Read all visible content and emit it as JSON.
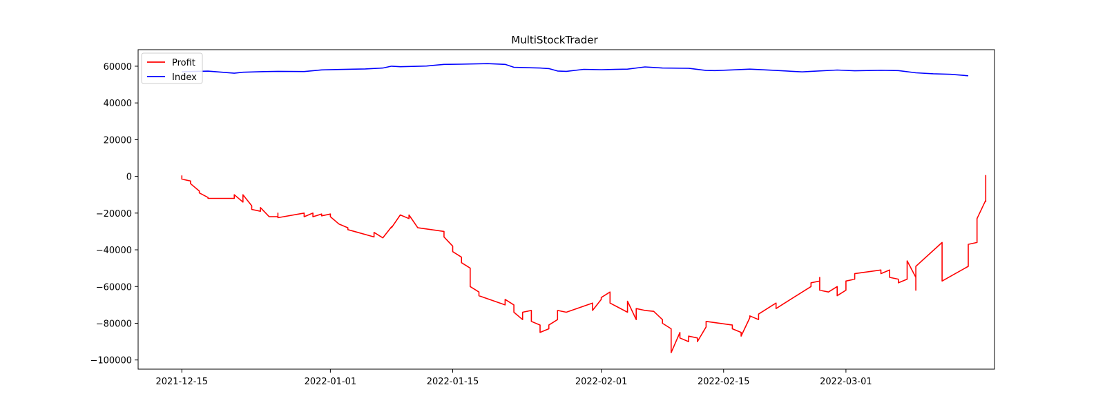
{
  "chart_data": {
    "type": "line",
    "title": "MultiStockTrader",
    "xlabel": "",
    "ylabel": "",
    "x_axis": {
      "kind": "date",
      "range": [
        "2021-12-10",
        "2022-03-18"
      ],
      "ticks": [
        {
          "date": "2021-12-15",
          "label": "2021-12-15"
        },
        {
          "date": "2022-01-01",
          "label": "2022-01-01"
        },
        {
          "date": "2022-01-15",
          "label": "2022-01-15"
        },
        {
          "date": "2022-02-01",
          "label": "2022-02-01"
        },
        {
          "date": "2022-02-15",
          "label": "2022-02-15"
        },
        {
          "date": "2022-03-01",
          "label": "2022-03-01"
        }
      ]
    },
    "y_axis": {
      "range": [
        -105000,
        69000
      ],
      "ticks": [
        {
          "value": 60000,
          "label": "60000"
        },
        {
          "value": 40000,
          "label": "40000"
        },
        {
          "value": 20000,
          "label": "20000"
        },
        {
          "value": 0,
          "label": "0"
        },
        {
          "value": -20000,
          "label": "−20000"
        },
        {
          "value": -40000,
          "label": "−40000"
        },
        {
          "value": -60000,
          "label": "−60000"
        },
        {
          "value": -80000,
          "label": "−80000"
        },
        {
          "value": -100000,
          "label": "−100000"
        }
      ]
    },
    "grid": false,
    "legend": {
      "position": "top-left",
      "entries": [
        {
          "label": "Profit",
          "color": "#ff0000"
        },
        {
          "label": "Index",
          "color": "#0000ff"
        }
      ]
    },
    "series": [
      {
        "name": "Profit",
        "color": "#ff0000",
        "points": [
          [
            "2021-12-15",
            500
          ],
          [
            "2021-12-15",
            -1500
          ],
          [
            "2021-12-16",
            -2500
          ],
          [
            "2021-12-16",
            -4000
          ],
          [
            "2021-12-17",
            -8000
          ],
          [
            "2021-12-17",
            -9000
          ],
          [
            "2021-12-18",
            -11500
          ],
          [
            "2021-12-18",
            -12000
          ],
          [
            "2021-12-21",
            -12000
          ],
          [
            "2021-12-21",
            -10000
          ],
          [
            "2021-12-22",
            -14000
          ],
          [
            "2021-12-22",
            -10000
          ],
          [
            "2021-12-23",
            -16000
          ],
          [
            "2021-12-23",
            -18000
          ],
          [
            "2021-12-24",
            -19000
          ],
          [
            "2021-12-24",
            -17000
          ],
          [
            "2021-12-25",
            -22000
          ],
          [
            "2021-12-26",
            -22000
          ],
          [
            "2021-12-26",
            -20000
          ],
          [
            "2021-12-26",
            -22500
          ],
          [
            "2021-12-29",
            -20000
          ],
          [
            "2021-12-29",
            -22000
          ],
          [
            "2021-12-30",
            -20000
          ],
          [
            "2021-12-30",
            -22000
          ],
          [
            "2021-12-31",
            -20500
          ],
          [
            "2021-12-31",
            -21500
          ],
          [
            "2022-01-01",
            -20500
          ],
          [
            "2022-01-01",
            -22000
          ],
          [
            "2022-01-02",
            -26000
          ],
          [
            "2022-01-03",
            -28000
          ],
          [
            "2022-01-03",
            -29000
          ],
          [
            "2022-01-06",
            -33000
          ],
          [
            "2022-01-06",
            -30500
          ],
          [
            "2022-01-07",
            -33500
          ],
          [
            "2022-01-08",
            -27500
          ],
          [
            "2022-01-08",
            -28000
          ],
          [
            "2022-01-09",
            -21000
          ],
          [
            "2022-01-10",
            -23000
          ],
          [
            "2022-01-10",
            -21000
          ],
          [
            "2022-01-11",
            -28000
          ],
          [
            "2022-01-14",
            -30000
          ],
          [
            "2022-01-14",
            -33000
          ],
          [
            "2022-01-15",
            -38000
          ],
          [
            "2022-01-15",
            -41000
          ],
          [
            "2022-01-16",
            -44000
          ],
          [
            "2022-01-16",
            -47000
          ],
          [
            "2022-01-17",
            -50000
          ],
          [
            "2022-01-17",
            -60000
          ],
          [
            "2022-01-18",
            -63000
          ],
          [
            "2022-01-18",
            -65000
          ],
          [
            "2022-01-21",
            -70000
          ],
          [
            "2022-01-21",
            -67000
          ],
          [
            "2022-01-22",
            -70000
          ],
          [
            "2022-01-22",
            -74000
          ],
          [
            "2022-01-23",
            -78000
          ],
          [
            "2022-01-23",
            -74000
          ],
          [
            "2022-01-24",
            -73000
          ],
          [
            "2022-01-24",
            -79000
          ],
          [
            "2022-01-25",
            -81000
          ],
          [
            "2022-01-25",
            -83000
          ],
          [
            "2022-01-25",
            -85000
          ],
          [
            "2022-01-26",
            -83000
          ],
          [
            "2022-01-26",
            -81000
          ],
          [
            "2022-01-27",
            -78000
          ],
          [
            "2022-01-27",
            -73000
          ],
          [
            "2022-01-28",
            -74000
          ],
          [
            "2022-01-31",
            -69000
          ],
          [
            "2022-01-31",
            -73000
          ],
          [
            "2022-02-01",
            -67000
          ],
          [
            "2022-02-01",
            -66000
          ],
          [
            "2022-02-02",
            -63000
          ],
          [
            "2022-02-02",
            -69000
          ],
          [
            "2022-02-04",
            -74000
          ],
          [
            "2022-02-04",
            -68000
          ],
          [
            "2022-02-05",
            -78000
          ],
          [
            "2022-02-05",
            -72000
          ],
          [
            "2022-02-06",
            -73000
          ],
          [
            "2022-02-07",
            -73500
          ],
          [
            "2022-02-08",
            -78000
          ],
          [
            "2022-02-08",
            -80000
          ],
          [
            "2022-02-09",
            -83000
          ],
          [
            "2022-02-09",
            -86000
          ],
          [
            "2022-02-09",
            -96000
          ],
          [
            "2022-02-10",
            -85000
          ],
          [
            "2022-02-10",
            -88000
          ],
          [
            "2022-02-11",
            -90000
          ],
          [
            "2022-02-11",
            -87000
          ],
          [
            "2022-02-12",
            -88000
          ],
          [
            "2022-02-12",
            -90000
          ],
          [
            "2022-02-13",
            -82000
          ],
          [
            "2022-02-13",
            -79000
          ],
          [
            "2022-02-16",
            -81000
          ],
          [
            "2022-02-16",
            -83000
          ],
          [
            "2022-02-17",
            -85000
          ],
          [
            "2022-02-17",
            -87000
          ],
          [
            "2022-02-18",
            -77000
          ],
          [
            "2022-02-18",
            -76000
          ],
          [
            "2022-02-19",
            -78000
          ],
          [
            "2022-02-19",
            -75000
          ],
          [
            "2022-02-20",
            -72000
          ],
          [
            "2022-02-21",
            -69000
          ],
          [
            "2022-02-21",
            -72000
          ],
          [
            "2022-02-22",
            -69000
          ],
          [
            "2022-02-25",
            -60000
          ],
          [
            "2022-02-25",
            -58000
          ],
          [
            "2022-02-26",
            -57000
          ],
          [
            "2022-02-26",
            -55000
          ],
          [
            "2022-02-26",
            -62000
          ],
          [
            "2022-02-27",
            -63000
          ],
          [
            "2022-02-28",
            -60000
          ],
          [
            "2022-02-28",
            -65000
          ],
          [
            "2022-03-01",
            -62000
          ],
          [
            "2022-03-01",
            -57000
          ],
          [
            "2022-03-02",
            -56000
          ],
          [
            "2022-03-02",
            -53000
          ],
          [
            "2022-03-05",
            -51000
          ],
          [
            "2022-03-05",
            -53000
          ],
          [
            "2022-03-06",
            -51000
          ],
          [
            "2022-03-06",
            -55000
          ],
          [
            "2022-03-07",
            -56000
          ],
          [
            "2022-03-07",
            -58000
          ],
          [
            "2022-03-08",
            -56000
          ],
          [
            "2022-03-08",
            -46000
          ],
          [
            "2022-03-09",
            -55000
          ],
          [
            "2022-03-09",
            -62000
          ],
          [
            "2022-03-09",
            -49000
          ],
          [
            "2022-03-12",
            -36000
          ],
          [
            "2022-03-12",
            -57000
          ],
          [
            "2022-03-15",
            -49000
          ],
          [
            "2022-03-15",
            -37000
          ],
          [
            "2022-03-16",
            -36000
          ],
          [
            "2022-03-16",
            -30000
          ],
          [
            "2022-03-16",
            -23000
          ],
          [
            "2022-03-17",
            -13000
          ],
          [
            "2022-03-17",
            500
          ],
          [
            "2022-03-17",
            -14000
          ]
        ]
      },
      {
        "name": "Index",
        "color": "#0000ff",
        "points": [
          [
            "2021-12-15",
            57000
          ],
          [
            "2021-12-18",
            57300
          ],
          [
            "2021-12-21",
            56200
          ],
          [
            "2021-12-22",
            56700
          ],
          [
            "2021-12-24",
            57000
          ],
          [
            "2021-12-26",
            57200
          ],
          [
            "2021-12-29",
            57100
          ],
          [
            "2021-12-31",
            58000
          ],
          [
            "2022-01-02",
            58200
          ],
          [
            "2022-01-05",
            58500
          ],
          [
            "2022-01-07",
            59000
          ],
          [
            "2022-01-08",
            60000
          ],
          [
            "2022-01-09",
            59700
          ],
          [
            "2022-01-12",
            60100
          ],
          [
            "2022-01-14",
            61000
          ],
          [
            "2022-01-16",
            61100
          ],
          [
            "2022-01-19",
            61400
          ],
          [
            "2022-01-21",
            61000
          ],
          [
            "2022-01-22",
            59400
          ],
          [
            "2022-01-25",
            59000
          ],
          [
            "2022-01-26",
            58700
          ],
          [
            "2022-01-27",
            57400
          ],
          [
            "2022-01-28",
            57200
          ],
          [
            "2022-01-30",
            58300
          ],
          [
            "2022-02-01",
            58100
          ],
          [
            "2022-02-04",
            58400
          ],
          [
            "2022-02-06",
            59600
          ],
          [
            "2022-02-08",
            59000
          ],
          [
            "2022-02-11",
            58900
          ],
          [
            "2022-02-13",
            57700
          ],
          [
            "2022-02-14",
            57600
          ],
          [
            "2022-02-16",
            58000
          ],
          [
            "2022-02-18",
            58400
          ],
          [
            "2022-02-21",
            57700
          ],
          [
            "2022-02-24",
            56900
          ],
          [
            "2022-02-25",
            57200
          ],
          [
            "2022-02-28",
            57900
          ],
          [
            "2022-03-02",
            57500
          ],
          [
            "2022-03-05",
            57800
          ],
          [
            "2022-03-07",
            57600
          ],
          [
            "2022-03-09",
            56400
          ],
          [
            "2022-03-11",
            55900
          ],
          [
            "2022-03-13",
            55600
          ],
          [
            "2022-03-15",
            54800
          ]
        ]
      }
    ]
  }
}
